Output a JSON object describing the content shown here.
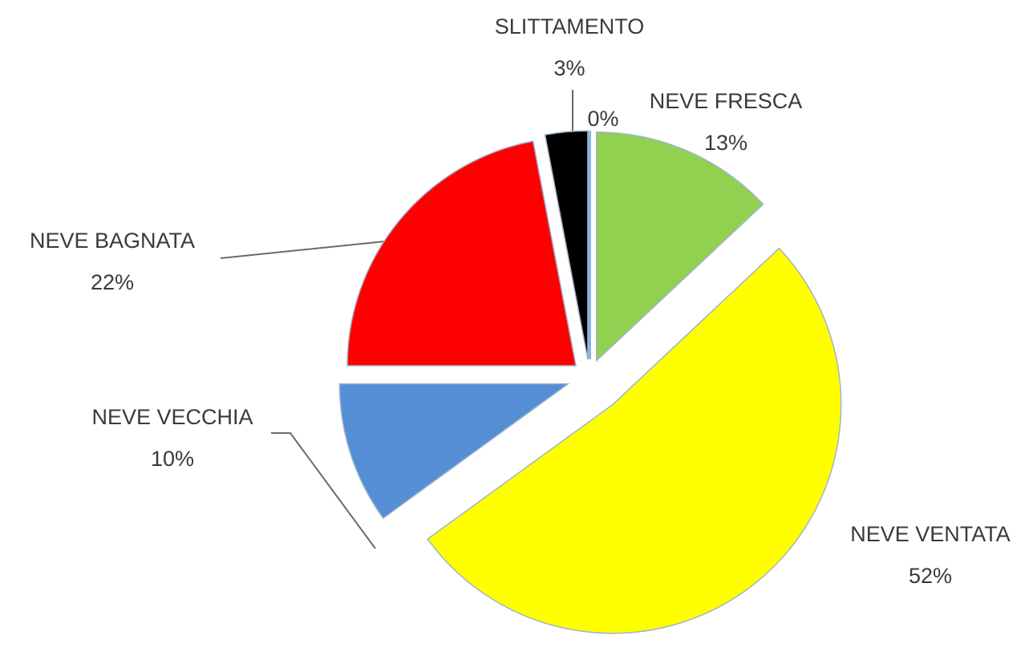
{
  "chart_data": {
    "type": "pie",
    "categories": [
      "NEVE FRESCA",
      "NEVE VENTATA",
      "NEVE VECCHIA",
      "NEVE BAGNATA",
      "SLITTAMENTO",
      null
    ],
    "values": [
      13,
      52,
      10,
      22,
      3,
      0
    ],
    "value_labels": [
      "13%",
      "52%",
      "10%",
      "22%",
      "3%",
      "0%"
    ],
    "colors": [
      "#92d050",
      "#ffff00",
      "#558ed5",
      "#ff0000",
      "#000000",
      "#8db4e2"
    ]
  }
}
